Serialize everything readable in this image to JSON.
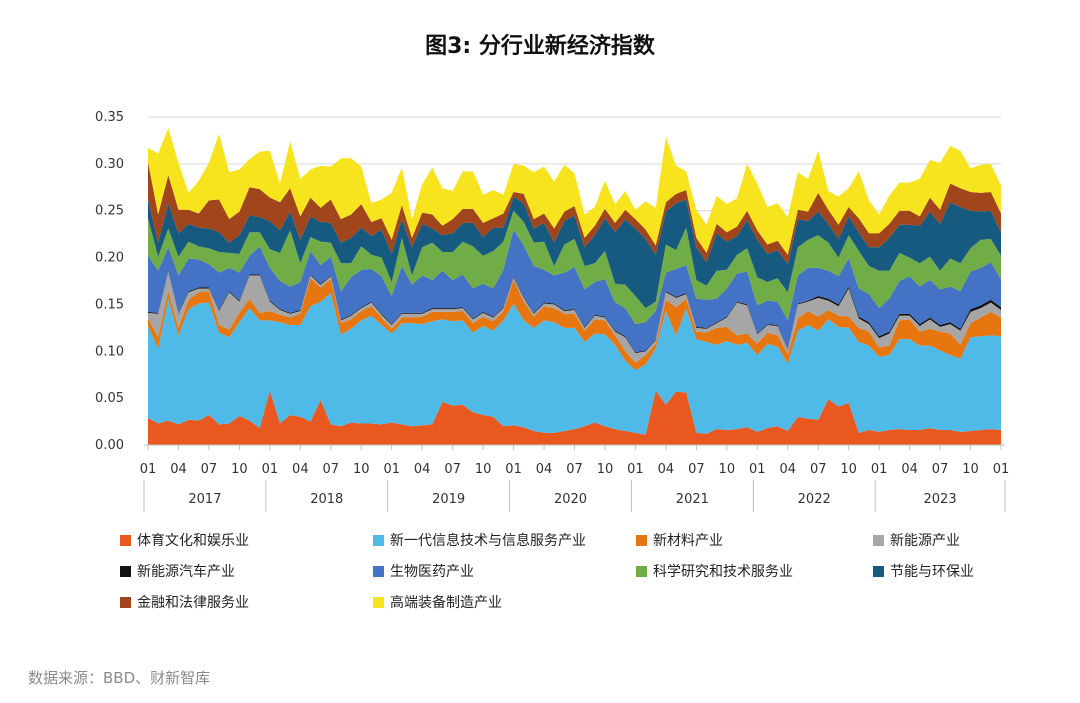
{
  "chart_data": {
    "type": "area",
    "title": "图3: 分行业新经济指数",
    "stacked": true,
    "ylim": [
      0,
      0.35
    ],
    "yticks": [
      "0.00",
      "0.05",
      "0.10",
      "0.15",
      "0.20",
      "0.25",
      "0.30",
      "0.35"
    ],
    "month_labels": [
      "01",
      "04",
      "07",
      "10",
      "01",
      "04",
      "07",
      "10",
      "01",
      "04",
      "07",
      "10",
      "01",
      "04",
      "07",
      "10",
      "01",
      "04",
      "07",
      "10",
      "01",
      "04",
      "07",
      "10",
      "01",
      "04",
      "07",
      "10",
      "01"
    ],
    "years": [
      "2017",
      "2018",
      "2019",
      "2020",
      "2021",
      "2022",
      "2023"
    ],
    "n_points": 85,
    "series": [
      {
        "name": "体育文化和娱乐业",
        "color": "#e8581f",
        "values": [
          0.029,
          0.023,
          0.026,
          0.022,
          0.027,
          0.026,
          0.032,
          0.022,
          0.023,
          0.031,
          0.026,
          0.018,
          0.058,
          0.023,
          0.032,
          0.03,
          0.025,
          0.048,
          0.022,
          0.02,
          0.024,
          0.023,
          0.023,
          0.022,
          0.024,
          0.022,
          0.02,
          0.021,
          0.022,
          0.046,
          0.042,
          0.043,
          0.035,
          0.032,
          0.03,
          0.02,
          0.021,
          0.019,
          0.015,
          0.013,
          0.013,
          0.015,
          0.017,
          0.02,
          0.024,
          0.02,
          0.017,
          0.015,
          0.013,
          0.011,
          0.058,
          0.043,
          0.057,
          0.056,
          0.013,
          0.012,
          0.017,
          0.016,
          0.017,
          0.019,
          0.014,
          0.018,
          0.02,
          0.015,
          0.03,
          0.028,
          0.027,
          0.049,
          0.041,
          0.045,
          0.013,
          0.016,
          0.014,
          0.016,
          0.017,
          0.016,
          0.016,
          0.018,
          0.016,
          0.016,
          0.014,
          0.015,
          0.016,
          0.017,
          0.016
        ]
      },
      {
        "name": "新一代信息技术与信息服务产业",
        "color": "#4fb9e8",
        "values": [
          0.098,
          0.08,
          0.13,
          0.095,
          0.118,
          0.125,
          0.12,
          0.098,
          0.092,
          0.1,
          0.12,
          0.115,
          0.075,
          0.108,
          0.096,
          0.098,
          0.123,
          0.105,
          0.14,
          0.098,
          0.1,
          0.11,
          0.115,
          0.106,
          0.095,
          0.108,
          0.11,
          0.108,
          0.11,
          0.088,
          0.09,
          0.09,
          0.085,
          0.095,
          0.092,
          0.113,
          0.13,
          0.114,
          0.11,
          0.12,
          0.118,
          0.11,
          0.108,
          0.09,
          0.095,
          0.098,
          0.09,
          0.075,
          0.067,
          0.075,
          0.045,
          0.1,
          0.06,
          0.09,
          0.1,
          0.098,
          0.09,
          0.095,
          0.09,
          0.09,
          0.082,
          0.09,
          0.085,
          0.072,
          0.092,
          0.1,
          0.095,
          0.085,
          0.085,
          0.08,
          0.097,
          0.09,
          0.08,
          0.08,
          0.096,
          0.097,
          0.09,
          0.088,
          0.085,
          0.08,
          0.078,
          0.1,
          0.1,
          0.1,
          0.1
        ]
      },
      {
        "name": "新材料产业",
        "color": "#e8760f",
        "values": [
          0.008,
          0.012,
          0.009,
          0.008,
          0.01,
          0.012,
          0.012,
          0.008,
          0.008,
          0.01,
          0.01,
          0.008,
          0.01,
          0.008,
          0.008,
          0.012,
          0.03,
          0.015,
          0.015,
          0.012,
          0.01,
          0.01,
          0.01,
          0.008,
          0.005,
          0.006,
          0.006,
          0.008,
          0.01,
          0.008,
          0.01,
          0.01,
          0.01,
          0.01,
          0.01,
          0.01,
          0.025,
          0.02,
          0.012,
          0.015,
          0.015,
          0.015,
          0.015,
          0.012,
          0.015,
          0.015,
          0.01,
          0.01,
          0.008,
          0.01,
          0.005,
          0.012,
          0.03,
          0.01,
          0.008,
          0.01,
          0.018,
          0.015,
          0.01,
          0.01,
          0.012,
          0.012,
          0.012,
          0.01,
          0.013,
          0.015,
          0.015,
          0.01,
          0.012,
          0.012,
          0.015,
          0.015,
          0.01,
          0.01,
          0.02,
          0.021,
          0.015,
          0.018,
          0.02,
          0.023,
          0.015,
          0.015,
          0.02,
          0.025,
          0.02
        ]
      },
      {
        "name": "新能源产业",
        "color": "#a6a6a6",
        "values": [
          0.006,
          0.025,
          0.02,
          0.015,
          0.008,
          0.004,
          0.003,
          0.015,
          0.04,
          0.012,
          0.025,
          0.04,
          0.01,
          0.005,
          0.004,
          0.003,
          0.003,
          0.003,
          0.003,
          0.003,
          0.004,
          0.003,
          0.004,
          0.003,
          0.004,
          0.004,
          0.004,
          0.003,
          0.003,
          0.003,
          0.003,
          0.003,
          0.004,
          0.004,
          0.004,
          0.003,
          0.003,
          0.004,
          0.003,
          0.003,
          0.004,
          0.003,
          0.004,
          0.003,
          0.004,
          0.003,
          0.004,
          0.015,
          0.01,
          0.004,
          0.004,
          0.008,
          0.01,
          0.005,
          0.004,
          0.004,
          0.005,
          0.01,
          0.035,
          0.03,
          0.01,
          0.008,
          0.01,
          0.005,
          0.015,
          0.01,
          0.02,
          0.01,
          0.01,
          0.03,
          0.01,
          0.008,
          0.01,
          0.013,
          0.005,
          0.004,
          0.006,
          0.01,
          0.005,
          0.01,
          0.015,
          0.012,
          0.01,
          0.01,
          0.008
        ]
      },
      {
        "name": "新能源汽车产业",
        "color": "#111111",
        "values": [
          0.001,
          0.001,
          0.001,
          0.001,
          0.001,
          0.001,
          0.001,
          0.001,
          0.001,
          0.001,
          0.001,
          0.001,
          0.001,
          0.001,
          0.001,
          0.001,
          0.001,
          0.001,
          0.001,
          0.001,
          0.001,
          0.001,
          0.001,
          0.001,
          0.001,
          0.001,
          0.001,
          0.001,
          0.001,
          0.001,
          0.001,
          0.001,
          0.001,
          0.001,
          0.001,
          0.001,
          0.001,
          0.001,
          0.001,
          0.001,
          0.001,
          0.001,
          0.001,
          0.001,
          0.001,
          0.001,
          0.001,
          0.001,
          0.001,
          0.001,
          0.001,
          0.001,
          0.001,
          0.001,
          0.001,
          0.001,
          0.001,
          0.001,
          0.001,
          0.001,
          0.001,
          0.001,
          0.001,
          0.001,
          0.001,
          0.001,
          0.002,
          0.002,
          0.002,
          0.002,
          0.002,
          0.002,
          0.002,
          0.002,
          0.002,
          0.002,
          0.002,
          0.002,
          0.002,
          0.002,
          0.002,
          0.003,
          0.003,
          0.003,
          0.003
        ]
      },
      {
        "name": "生物医药产业",
        "color": "#4472c4",
        "values": [
          0.06,
          0.045,
          0.025,
          0.04,
          0.035,
          0.03,
          0.025,
          0.04,
          0.025,
          0.03,
          0.02,
          0.03,
          0.035,
          0.03,
          0.028,
          0.03,
          0.025,
          0.02,
          0.02,
          0.03,
          0.04,
          0.04,
          0.035,
          0.04,
          0.03,
          0.05,
          0.03,
          0.04,
          0.03,
          0.04,
          0.03,
          0.035,
          0.032,
          0.03,
          0.03,
          0.04,
          0.05,
          0.055,
          0.05,
          0.035,
          0.03,
          0.04,
          0.045,
          0.04,
          0.035,
          0.04,
          0.03,
          0.03,
          0.03,
          0.03,
          0.03,
          0.02,
          0.03,
          0.03,
          0.03,
          0.03,
          0.025,
          0.03,
          0.03,
          0.035,
          0.03,
          0.025,
          0.025,
          0.03,
          0.03,
          0.035,
          0.03,
          0.03,
          0.03,
          0.03,
          0.03,
          0.03,
          0.03,
          0.035,
          0.035,
          0.04,
          0.04,
          0.04,
          0.038,
          0.038,
          0.04,
          0.04,
          0.04,
          0.04,
          0.03
        ]
      },
      {
        "name": "科学研究和技术服务业",
        "color": "#70ad47",
        "values": [
          0.04,
          0.015,
          0.02,
          0.02,
          0.018,
          0.014,
          0.017,
          0.022,
          0.016,
          0.02,
          0.025,
          0.015,
          0.02,
          0.03,
          0.06,
          0.02,
          0.015,
          0.025,
          0.015,
          0.03,
          0.015,
          0.025,
          0.015,
          0.02,
          0.015,
          0.03,
          0.01,
          0.03,
          0.04,
          0.02,
          0.03,
          0.035,
          0.045,
          0.03,
          0.04,
          0.03,
          0.02,
          0.025,
          0.025,
          0.03,
          0.01,
          0.03,
          0.03,
          0.025,
          0.02,
          0.03,
          0.02,
          0.025,
          0.03,
          0.015,
          0.01,
          0.03,
          0.02,
          0.04,
          0.02,
          0.015,
          0.03,
          0.02,
          0.02,
          0.025,
          0.03,
          0.02,
          0.025,
          0.03,
          0.03,
          0.03,
          0.035,
          0.03,
          0.02,
          0.025,
          0.04,
          0.03,
          0.04,
          0.03,
          0.03,
          0.02,
          0.025,
          0.025,
          0.02,
          0.03,
          0.03,
          0.025,
          0.03,
          0.025,
          0.025
        ]
      },
      {
        "name": "节能与环保业",
        "color": "#165a80",
        "values": [
          0.02,
          0.015,
          0.027,
          0.025,
          0.019,
          0.02,
          0.021,
          0.021,
          0.011,
          0.02,
          0.018,
          0.016,
          0.03,
          0.024,
          0.02,
          0.025,
          0.022,
          0.021,
          0.021,
          0.022,
          0.027,
          0.02,
          0.02,
          0.03,
          0.03,
          0.02,
          0.03,
          0.025,
          0.015,
          0.018,
          0.02,
          0.02,
          0.025,
          0.02,
          0.025,
          0.015,
          0.015,
          0.02,
          0.015,
          0.02,
          0.025,
          0.025,
          0.025,
          0.02,
          0.03,
          0.035,
          0.055,
          0.07,
          0.072,
          0.074,
          0.05,
          0.035,
          0.05,
          0.03,
          0.035,
          0.025,
          0.04,
          0.03,
          0.02,
          0.03,
          0.04,
          0.03,
          0.03,
          0.03,
          0.03,
          0.02,
          0.025,
          0.02,
          0.02,
          0.02,
          0.02,
          0.02,
          0.025,
          0.035,
          0.03,
          0.035,
          0.04,
          0.048,
          0.05,
          0.06,
          0.06,
          0.04,
          0.03,
          0.03,
          0.025
        ]
      },
      {
        "name": "金融和法律服务业",
        "color": "#a0451c",
        "values": [
          0.04,
          0.03,
          0.03,
          0.025,
          0.015,
          0.015,
          0.03,
          0.035,
          0.025,
          0.025,
          0.03,
          0.03,
          0.025,
          0.03,
          0.025,
          0.025,
          0.02,
          0.015,
          0.025,
          0.025,
          0.025,
          0.025,
          0.015,
          0.012,
          0.015,
          0.015,
          0.01,
          0.012,
          0.015,
          0.01,
          0.015,
          0.015,
          0.015,
          0.015,
          0.01,
          0.015,
          0.005,
          0.01,
          0.01,
          0.01,
          0.015,
          0.01,
          0.01,
          0.01,
          0.01,
          0.01,
          0.01,
          0.01,
          0.01,
          0.01,
          0.01,
          0.01,
          0.01,
          0.01,
          0.01,
          0.01,
          0.01,
          0.01,
          0.01,
          0.01,
          0.01,
          0.01,
          0.01,
          0.01,
          0.01,
          0.01,
          0.02,
          0.015,
          0.015,
          0.01,
          0.015,
          0.015,
          0.015,
          0.015,
          0.015,
          0.015,
          0.01,
          0.015,
          0.015,
          0.02,
          0.02,
          0.02,
          0.02,
          0.02,
          0.02
        ]
      },
      {
        "name": "高端装备制造产业",
        "color": "#f7e31e",
        "values": [
          0.015,
          0.065,
          0.05,
          0.05,
          0.018,
          0.035,
          0.04,
          0.07,
          0.05,
          0.045,
          0.03,
          0.04,
          0.05,
          0.02,
          0.05,
          0.04,
          0.03,
          0.045,
          0.035,
          0.065,
          0.06,
          0.04,
          0.02,
          0.02,
          0.05,
          0.04,
          0.02,
          0.03,
          0.05,
          0.04,
          0.03,
          0.04,
          0.04,
          0.03,
          0.03,
          0.02,
          0.03,
          0.03,
          0.05,
          0.05,
          0.05,
          0.05,
          0.035,
          0.025,
          0.02,
          0.03,
          0.02,
          0.02,
          0.01,
          0.03,
          0.04,
          0.07,
          0.03,
          0.02,
          0.03,
          0.03,
          0.03,
          0.03,
          0.03,
          0.05,
          0.05,
          0.04,
          0.04,
          0.04,
          0.04,
          0.035,
          0.045,
          0.02,
          0.03,
          0.02,
          0.05,
          0.035,
          0.02,
          0.03,
          0.03,
          0.03,
          0.04,
          0.04,
          0.05,
          0.04,
          0.04,
          0.025,
          0.03,
          0.03,
          0.03
        ]
      }
    ]
  },
  "footer": {
    "source": "数据来源：BBD、财新智库"
  }
}
